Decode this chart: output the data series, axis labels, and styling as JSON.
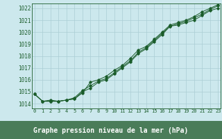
{
  "title": "Graphe pression niveau de la mer (hPa)",
  "background_color": "#cce8ed",
  "plot_bg_color": "#cce8ed",
  "bottom_bar_color": "#4a7c59",
  "line_color": "#1a5c2a",
  "grid_color": "#aacdd4",
  "x_ticks": [
    0,
    1,
    2,
    3,
    4,
    5,
    6,
    7,
    8,
    9,
    10,
    11,
    12,
    13,
    14,
    15,
    16,
    17,
    18,
    19,
    20,
    21,
    22,
    23
  ],
  "ylim": [
    1013.6,
    1022.4
  ],
  "xlim": [
    -0.3,
    23.3
  ],
  "yticks": [
    1014,
    1015,
    1016,
    1017,
    1018,
    1019,
    1020,
    1021,
    1022
  ],
  "series": [
    [
      1014.8,
      1014.2,
      1014.2,
      1014.2,
      1014.3,
      1014.4,
      1015.0,
      1015.3,
      1015.8,
      1016.0,
      1016.5,
      1017.0,
      1017.5,
      1018.2,
      1018.6,
      1019.2,
      1019.8,
      1020.5,
      1020.6,
      1020.8,
      1021.0,
      1021.4,
      1021.8,
      1022.0
    ],
    [
      1014.8,
      1014.2,
      1014.3,
      1014.2,
      1014.3,
      1014.5,
      1015.1,
      1015.5,
      1015.9,
      1016.1,
      1016.6,
      1017.1,
      1017.6,
      1018.3,
      1018.7,
      1019.3,
      1019.9,
      1020.5,
      1020.7,
      1020.9,
      1021.2,
      1021.5,
      1021.9,
      1022.2
    ],
    [
      1014.8,
      1014.2,
      1014.2,
      1014.2,
      1014.3,
      1014.4,
      1014.9,
      1015.8,
      1016.0,
      1016.3,
      1016.8,
      1017.2,
      1017.8,
      1018.5,
      1018.8,
      1019.4,
      1020.0,
      1020.6,
      1020.8,
      1021.0,
      1021.3,
      1021.7,
      1022.0,
      1022.3
    ]
  ]
}
